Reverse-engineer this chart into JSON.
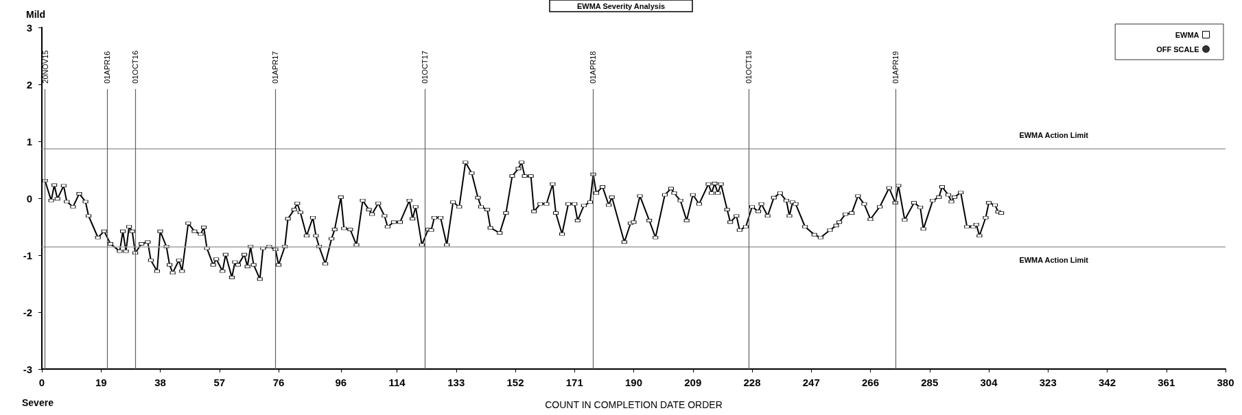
{
  "chart_data": {
    "type": "line",
    "title": "EWMA Severity Analysis",
    "xlabel": "COUNT IN COMPLETION DATE ORDER",
    "annotations": [
      "Mild",
      "Severe"
    ],
    "xlim": [
      0,
      380
    ],
    "xticks": [
      0,
      19,
      38,
      57,
      76,
      96,
      114,
      133,
      152,
      171,
      190,
      209,
      228,
      247,
      266,
      285,
      304,
      323,
      342,
      361,
      380
    ],
    "ylim": [
      -3,
      3
    ],
    "yticks": [
      -3,
      -2,
      -1,
      0,
      1,
      2,
      3
    ],
    "grid": false,
    "legend": "top right",
    "marker": "square",
    "line_style": "solid",
    "ref_lines": [
      {
        "axis": "y",
        "value": 0.87,
        "label": "EWMA Action Limit",
        "color": "#a0a0a0"
      },
      {
        "axis": "y",
        "value": -0.85,
        "label": "EWMA Action Limit",
        "color": "#a0a0a0"
      },
      {
        "axis": "x",
        "value": 1,
        "label": "20NOV15",
        "color": "#606060"
      },
      {
        "axis": "x",
        "value": 21,
        "label": "01APR16",
        "color": "#606060"
      },
      {
        "axis": "x",
        "value": 30,
        "label": "01OCT16",
        "color": "#606060"
      },
      {
        "axis": "x",
        "value": 75,
        "label": "01APR17",
        "color": "#606060"
      },
      {
        "axis": "x",
        "value": 123,
        "label": "01OCT17",
        "color": "#606060"
      },
      {
        "axis": "x",
        "value": 177,
        "label": "01APR18",
        "color": "#606060"
      },
      {
        "axis": "x",
        "value": 227,
        "label": "01OCT18",
        "color": "#606060"
      },
      {
        "axis": "x",
        "value": 274,
        "label": "01APR19",
        "color": "#606060"
      }
    ],
    "series": [
      {
        "name": "EWMA",
        "color": "#000000",
        "x": [
          1,
          3,
          4,
          5,
          7,
          8,
          10,
          12,
          14,
          15,
          18,
          20,
          22,
          25,
          26,
          27,
          28,
          29,
          30,
          32,
          34,
          35,
          37,
          38,
          40,
          41,
          42,
          44,
          45,
          47,
          49,
          51,
          52,
          53,
          55,
          56,
          58,
          59,
          61,
          62,
          63,
          65,
          66,
          67,
          68,
          70,
          71,
          73,
          75,
          76,
          78,
          79,
          81,
          82,
          83,
          85,
          87,
          88,
          89,
          91,
          93,
          94,
          96,
          97,
          99,
          101,
          103,
          105,
          106,
          108,
          110,
          111,
          113,
          115,
          118,
          119,
          120,
          122,
          124,
          125,
          126,
          128,
          130,
          132,
          134,
          136,
          138,
          140,
          141,
          143,
          144,
          147,
          149,
          151,
          153,
          154,
          155,
          157,
          158,
          160,
          162,
          164,
          165,
          167,
          169,
          171,
          172,
          174,
          176,
          177,
          178,
          180,
          182,
          183,
          187,
          189,
          190,
          192,
          195,
          197,
          200,
          202,
          203,
          205,
          207,
          209,
          211,
          214,
          215,
          216,
          217,
          218,
          220,
          221,
          223,
          224,
          226,
          228,
          230,
          231,
          233,
          235,
          237,
          239,
          240,
          241,
          242,
          245,
          248,
          250,
          253,
          255,
          256,
          258,
          260,
          262,
          264,
          266,
          269,
          272,
          274,
          275,
          277,
          280,
          282,
          283,
          286,
          288,
          289,
          291,
          292,
          293,
          295,
          297,
          299,
          300,
          301,
          303,
          304,
          306,
          307,
          308
        ],
        "values": [
          0.31,
          -0.04,
          0.23,
          -0.01,
          0.22,
          -0.06,
          -0.15,
          0.08,
          -0.06,
          -0.31,
          -0.69,
          -0.58,
          -0.8,
          -0.93,
          -0.58,
          -0.93,
          -0.5,
          -0.58,
          -0.96,
          -0.8,
          -0.77,
          -1.09,
          -1.28,
          -0.58,
          -0.85,
          -1.17,
          -1.31,
          -1.09,
          -1.28,
          -0.44,
          -0.58,
          -0.63,
          -0.51,
          -0.88,
          -1.17,
          -1.07,
          -1.28,
          -0.99,
          -1.39,
          -1.12,
          -1.17,
          -0.99,
          -1.2,
          -0.85,
          -1.17,
          -1.42,
          -0.88,
          -0.85,
          -0.9,
          -1.17,
          -0.85,
          -0.36,
          -0.2,
          -0.09,
          -0.25,
          -0.66,
          -0.34,
          -0.66,
          -0.85,
          -1.15,
          -0.71,
          -0.55,
          0.02,
          -0.53,
          -0.55,
          -0.82,
          -0.04,
          -0.2,
          -0.28,
          -0.09,
          -0.31,
          -0.5,
          -0.42,
          -0.42,
          -0.04,
          -0.36,
          -0.15,
          -0.82,
          -0.55,
          -0.56,
          -0.34,
          -0.34,
          -0.82,
          -0.07,
          -0.15,
          0.63,
          0.44,
          0.01,
          -0.15,
          -0.2,
          -0.52,
          -0.61,
          -0.26,
          0.39,
          0.52,
          0.63,
          0.39,
          0.39,
          -0.23,
          -0.1,
          -0.1,
          0.25,
          -0.26,
          -0.63,
          -0.1,
          -0.1,
          -0.39,
          -0.13,
          -0.07,
          0.42,
          0.09,
          0.2,
          -0.12,
          0.02,
          -0.77,
          -0.44,
          -0.42,
          0.04,
          -0.39,
          -0.69,
          0.06,
          0.17,
          0.09,
          -0.04,
          -0.39,
          0.06,
          -0.1,
          0.25,
          0.09,
          0.26,
          0.09,
          0.25,
          -0.2,
          -0.42,
          -0.31,
          -0.56,
          -0.5,
          -0.15,
          -0.23,
          -0.1,
          -0.31,
          0.01,
          0.09,
          -0.04,
          -0.31,
          -0.07,
          -0.1,
          -0.5,
          -0.64,
          -0.69,
          -0.56,
          -0.48,
          -0.42,
          -0.28,
          -0.26,
          0.04,
          -0.1,
          -0.37,
          -0.15,
          0.18,
          -0.08,
          0.22,
          -0.38,
          -0.08,
          -0.16,
          -0.54,
          -0.04,
          0.02,
          0.2,
          0.06,
          -0.06,
          0.02,
          0.1,
          -0.5,
          -0.5,
          -0.46,
          -0.66,
          -0.34,
          -0.08,
          -0.12,
          -0.24,
          -0.26
        ]
      },
      {
        "name": "OFF SCALE",
        "type": "scatter",
        "color": "#000000",
        "marker": "circle"
      }
    ]
  }
}
